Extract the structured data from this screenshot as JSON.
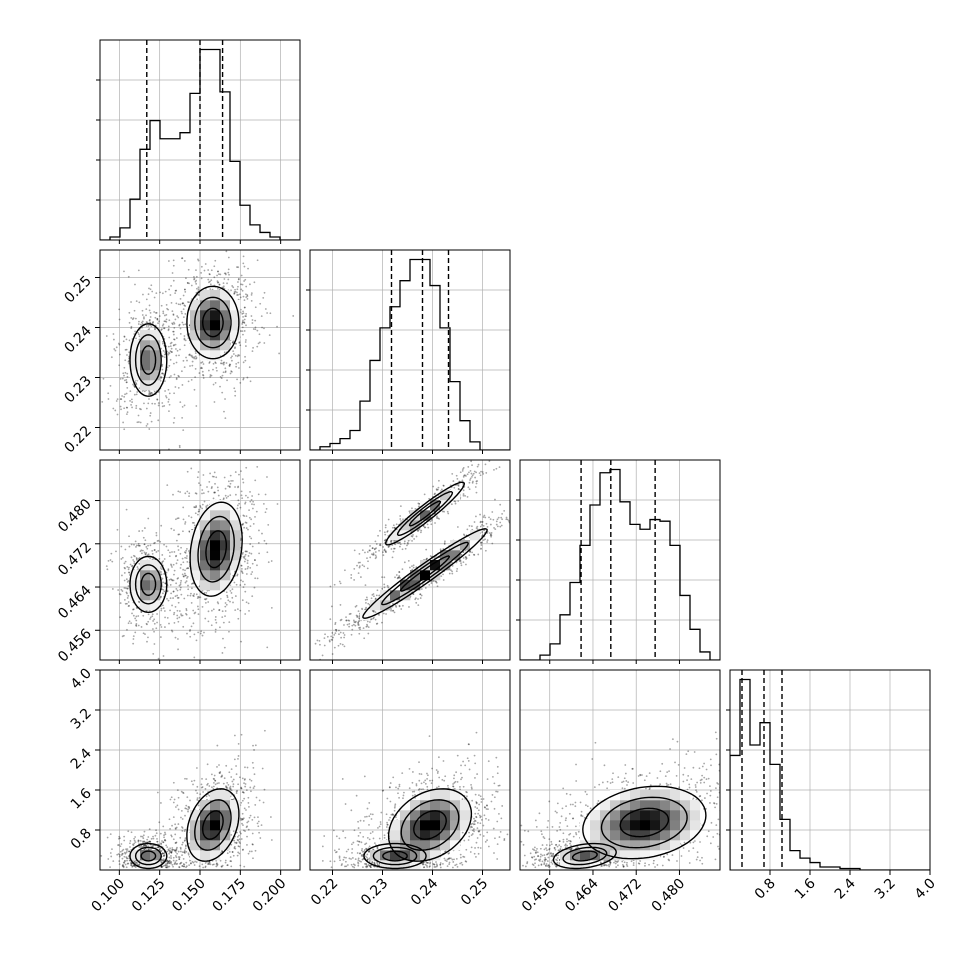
{
  "chart_data": {
    "type": "corner",
    "title": "",
    "grid": true,
    "colors": {
      "hist": "#000000",
      "contour": "#000000",
      "grid": "#b0b0b0",
      "quantile": "#000000"
    },
    "quantiles_style": "dashed",
    "parameters": [
      {
        "index": 0,
        "range": [
          0.088,
          0.212
        ],
        "ticks": [
          0.1,
          0.125,
          0.15,
          0.175,
          0.2
        ],
        "tick_labels": [
          "0.100",
          "0.125",
          "0.150",
          "0.175",
          "0.200"
        ],
        "quantiles": [
          0.117,
          0.15,
          0.164
        ]
      },
      {
        "index": 1,
        "range": [
          0.2155,
          0.2555
        ],
        "ticks": [
          0.22,
          0.23,
          0.24,
          0.25
        ],
        "tick_labels": [
          "0.22",
          "0.23",
          "0.24",
          "0.25"
        ],
        "quantiles": [
          0.2318,
          0.238,
          0.2432
        ]
      },
      {
        "index": 2,
        "range": [
          0.4505,
          0.4875
        ],
        "ticks": [
          0.456,
          0.464,
          0.472,
          0.48
        ],
        "tick_labels": [
          "0.456",
          "0.464",
          "0.472",
          "0.480"
        ],
        "quantiles": [
          0.4618,
          0.4673,
          0.4755
        ]
      },
      {
        "index": 3,
        "range": [
          0.0,
          4.0
        ],
        "ticks": [
          0.8,
          1.6,
          2.4,
          3.2,
          4.0
        ],
        "tick_labels": [
          "0.8",
          "1.6",
          "2.4",
          "3.2",
          "4.0"
        ],
        "quantiles": [
          0.24,
          0.68,
          1.04
        ]
      }
    ],
    "histograms": [
      {
        "param": 0,
        "edges_start": 0.088,
        "bin_width": 0.0062,
        "counts": [
          0,
          2,
          8,
          27,
          60,
          79,
          67,
          67,
          71,
          97,
          126,
          126,
          98,
          52,
          23,
          10,
          5,
          2,
          0,
          0
        ]
      },
      {
        "param": 1,
        "edges_start": 0.2155,
        "bin_width": 0.002,
        "counts": [
          0,
          2,
          4,
          7,
          12,
          30,
          55,
          75,
          88,
          104,
          117,
          117,
          101,
          75,
          42,
          18,
          5,
          0,
          0,
          0
        ]
      },
      {
        "param": 2,
        "edges_start": 0.4505,
        "bin_width": 0.00185,
        "counts": [
          0,
          0,
          3,
          10,
          28,
          48,
          71,
          96,
          116,
          118,
          98,
          84,
          81,
          87,
          86,
          71,
          40,
          19,
          5,
          0
        ]
      },
      {
        "param": 3,
        "edges_start": 0.0,
        "bin_width": 0.2,
        "counts": [
          77,
          128,
          84,
          99,
          71,
          34,
          13,
          8,
          5,
          2,
          2,
          1,
          1,
          0,
          0,
          0,
          0,
          0,
          0,
          0
        ]
      }
    ],
    "density_modes": [
      {
        "pair": [
          0,
          1
        ],
        "modes": [
          {
            "x": 0.118,
            "y": 0.2335,
            "sx": 0.0055,
            "sy": 0.0035,
            "rho": 0.0,
            "w": 0.4
          },
          {
            "x": 0.158,
            "y": 0.241,
            "sx": 0.0078,
            "sy": 0.0035,
            "rho": 0.0,
            "w": 0.6
          }
        ]
      },
      {
        "pair": [
          0,
          2
        ],
        "modes": [
          {
            "x": 0.118,
            "y": 0.4645,
            "sx": 0.0055,
            "sy": 0.0025,
            "rho": 0.0,
            "w": 0.4
          },
          {
            "x": 0.16,
            "y": 0.471,
            "sx": 0.0078,
            "sy": 0.0042,
            "rho": 0.2,
            "w": 0.6
          }
        ]
      },
      {
        "pair": [
          0,
          3
        ],
        "modes": [
          {
            "x": 0.118,
            "y": 0.28,
            "sx": 0.0055,
            "sy": 0.12,
            "rho": 0.0,
            "w": 0.4
          },
          {
            "x": 0.158,
            "y": 0.9,
            "sx": 0.0078,
            "sy": 0.35,
            "rho": 0.3,
            "w": 0.6
          }
        ]
      },
      {
        "pair": [
          1,
          2
        ],
        "modes": [
          {
            "x": 0.2385,
            "y": 0.4776,
            "sx": 0.0038,
            "sy": 0.0028,
            "rho": 0.95,
            "w": 0.4
          },
          {
            "x": 0.2385,
            "y": 0.4665,
            "sx": 0.006,
            "sy": 0.004,
            "rho": 0.97,
            "w": 0.6
          }
        ]
      },
      {
        "pair": [
          1,
          3
        ],
        "modes": [
          {
            "x": 0.2325,
            "y": 0.28,
            "sx": 0.003,
            "sy": 0.12,
            "rho": 0.0,
            "w": 0.4
          },
          {
            "x": 0.2395,
            "y": 0.9,
            "sx": 0.004,
            "sy": 0.35,
            "rho": 0.3,
            "w": 0.6
          }
        ]
      },
      {
        "pair": [
          2,
          3
        ],
        "modes": [
          {
            "x": 0.4625,
            "y": 0.28,
            "sx": 0.0028,
            "sy": 0.12,
            "rho": 0.3,
            "w": 0.4
          },
          {
            "x": 0.4735,
            "y": 0.95,
            "sx": 0.0055,
            "sy": 0.35,
            "rho": 0.2,
            "w": 0.6
          }
        ]
      }
    ]
  }
}
